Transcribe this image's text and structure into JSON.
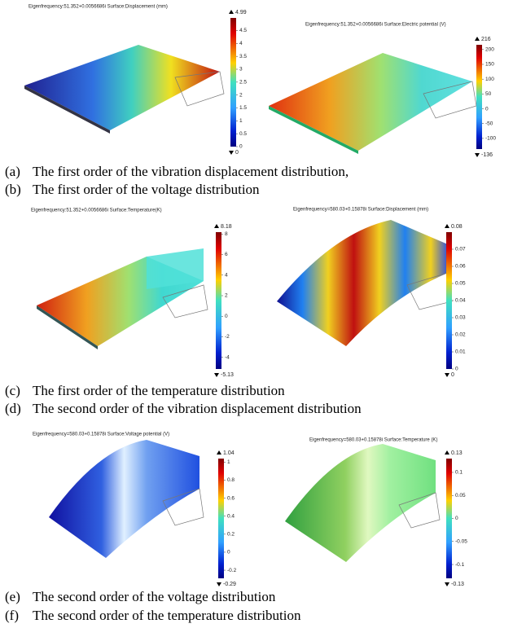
{
  "panels": [
    {
      "title": "Eigenfrequency:51.352+0.0056686i Surface:Displacement (mm)",
      "max": 4.99,
      "min": 0,
      "ticks": [
        4.5,
        4,
        3.5,
        3,
        2.5,
        2,
        1.5,
        1,
        0.5,
        0
      ]
    },
    {
      "title": "Eigenfrequency:51.352+0.0056686i Surface:Electric potential (V)",
      "max": 216,
      "min": -136,
      "ticks": [
        200,
        150,
        100,
        50,
        0,
        -50,
        -100
      ]
    },
    {
      "title": "Eigenfrequency:51.352+0.0056686i Surface:Temperature(K)",
      "max": 8.18,
      "min": -5.13,
      "ticks": [
        8,
        6,
        4,
        2,
        0,
        -2,
        -4
      ]
    },
    {
      "title": "Eigenfrequency=580.03+0.15878i Surface:Displacement (mm)",
      "max": 0.08,
      "min": 0,
      "ticks": [
        0.07,
        0.06,
        0.05,
        0.04,
        0.03,
        0.02,
        0.01,
        0
      ]
    },
    {
      "title": "Eigenfrequency=580.03+0.15878i Surface:Voltage potential (V)",
      "max": 1.04,
      "min": -0.29,
      "ticks": [
        1,
        0.8,
        0.6,
        0.4,
        0.2,
        0,
        -0.2
      ]
    },
    {
      "title": "Eigenfrequency=580.03+0.15878i Surface:Temperature (K)",
      "max": 0.13,
      "min": -0.13,
      "ticks": [
        0.1,
        0.05,
        0,
        -0.05,
        -0.1
      ]
    }
  ],
  "captions": [
    {
      "label": "(a)",
      "text": "The first order of the vibration displacement distribution,"
    },
    {
      "label": "(b)",
      "text": "The first order of the voltage distribution"
    },
    {
      "label": "(c)",
      "text": "The first order of the temperature distribution"
    },
    {
      "label": "(d)",
      "text": "The second order of the vibration displacement distribution"
    },
    {
      "label": "(e)",
      "text": "The second order of the voltage distribution"
    },
    {
      "label": "(f)",
      "text": "The second order of the temperature distribution"
    }
  ]
}
